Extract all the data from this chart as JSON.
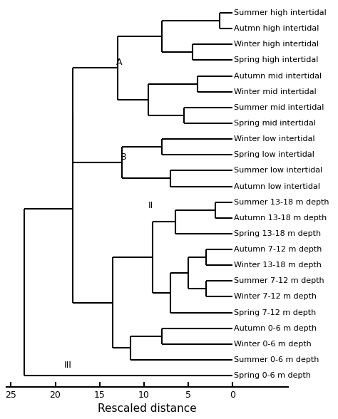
{
  "xlabel": "Rescaled distance",
  "xticks": [
    25,
    20,
    15,
    10,
    5,
    0
  ],
  "labels": [
    "Summer high intertidal",
    "Autmn high intertidal",
    "Winter high intertidal",
    "Spring high intertidal",
    "Autumn mid intertidal",
    "Winter mid intertidal",
    "Summer mid intertidal",
    "Spring mid intertidal",
    "Winter low intertidal",
    "Spring low intertidal",
    "Summer low intertidal",
    "Autumn low intertidal",
    "Summer 13-18 m depth",
    "Autumn 13-18 m depth",
    "Spring 13-18 m depth",
    "Autumn 7-12 m depth",
    "Winter 13-18 m depth",
    "Summer 7-12 m depth",
    "Winter 7-12 m depth",
    "Spring 7-12 m depth",
    "Autumn 0-6 m depth",
    "Winter 0-6 m depth",
    "Summer 0-6 m depth",
    "Spring 0-6 m depth"
  ],
  "line_color": "#000000",
  "text_color": "#000000",
  "bg_color": "#ffffff",
  "leaf_fontsize": 8.0,
  "xlabel_fontsize": 11,
  "annot_fontsize": 9,
  "d12": 1.5,
  "d34": 4.5,
  "d1234": 8.0,
  "d56": 4.0,
  "d78": 5.5,
  "d5678": 9.5,
  "d_A": 13.0,
  "d910": 8.0,
  "d1112": 7.0,
  "d_B": 12.5,
  "d_I": 18.0,
  "d1314": 2.0,
  "d131415": 6.5,
  "d1617": 3.0,
  "d1819": 3.0,
  "d16171819": 5.0,
  "d1617181920": 7.0,
  "d13to20": 9.0,
  "d2122": 8.0,
  "d212223": 11.5,
  "d13to23": 13.5,
  "d_II_connect": 18.0,
  "d_III": 23.5,
  "figw": 4.74,
  "figh": 5.88,
  "dpi": 100
}
